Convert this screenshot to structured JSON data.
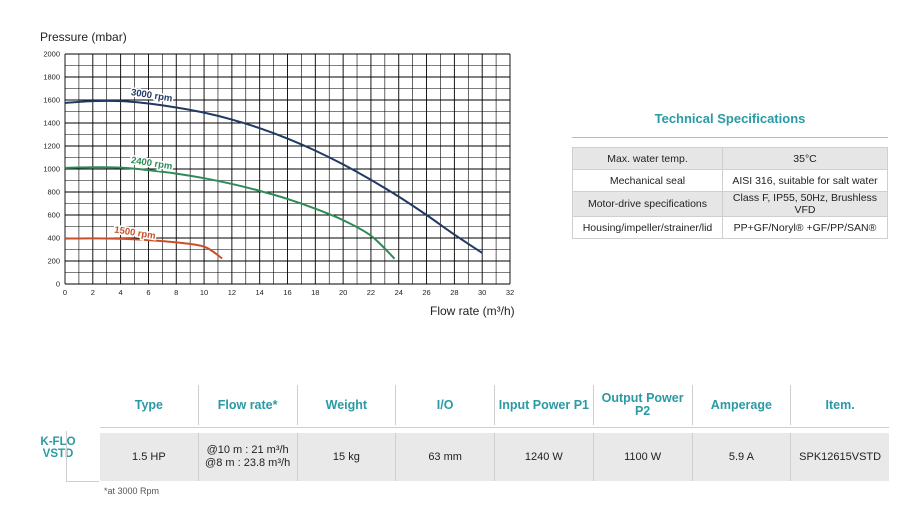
{
  "chart_data": {
    "type": "line",
    "ylabel": "Pressure (mbar)",
    "xlabel": "Flow rate (m³/h)",
    "xlim": [
      0,
      32
    ],
    "ylim": [
      0,
      2000
    ],
    "xticks": [
      0,
      2,
      4,
      6,
      8,
      10,
      12,
      14,
      16,
      18,
      20,
      22,
      24,
      26,
      28,
      30,
      32
    ],
    "yticks": [
      0,
      200,
      400,
      600,
      800,
      1000,
      1200,
      1400,
      1600,
      1800,
      2000
    ],
    "grid": true,
    "series": [
      {
        "name": "3000 rpm",
        "color": "#1f3a63",
        "points": [
          [
            0,
            1575
          ],
          [
            2,
            1590
          ],
          [
            4,
            1590
          ],
          [
            6,
            1570
          ],
          [
            8,
            1535
          ],
          [
            10,
            1490
          ],
          [
            12,
            1430
          ],
          [
            14,
            1355
          ],
          [
            16,
            1265
          ],
          [
            18,
            1160
          ],
          [
            20,
            1040
          ],
          [
            22,
            905
          ],
          [
            24,
            760
          ],
          [
            26,
            600
          ],
          [
            28,
            430
          ],
          [
            30,
            270
          ]
        ]
      },
      {
        "name": "2400 rpm",
        "color": "#2e8b57",
        "points": [
          [
            0,
            1010
          ],
          [
            2,
            1015
          ],
          [
            4,
            1012
          ],
          [
            6,
            990
          ],
          [
            8,
            960
          ],
          [
            10,
            920
          ],
          [
            12,
            870
          ],
          [
            14,
            810
          ],
          [
            16,
            740
          ],
          [
            18,
            655
          ],
          [
            20,
            555
          ],
          [
            22,
            420
          ],
          [
            23.7,
            220
          ]
        ]
      },
      {
        "name": "1500 rpm",
        "color": "#c8502a",
        "points": [
          [
            0,
            395
          ],
          [
            2,
            397
          ],
          [
            4,
            393
          ],
          [
            6,
            382
          ],
          [
            8,
            362
          ],
          [
            10,
            325
          ],
          [
            11.3,
            222
          ]
        ]
      }
    ]
  },
  "specs": {
    "title": "Technical Specifications",
    "rows": [
      {
        "key": "Max. water temp.",
        "value": "35°C"
      },
      {
        "key": "Mechanical seal",
        "value": "AISI 316, suitable for salt water"
      },
      {
        "key": "Motor-drive specifications",
        "value": "Class F, IP55, 50Hz, Brushless VFD"
      },
      {
        "key": "Housing/impeller/strainer/lid",
        "value": "PP+GF/Noryl® +GF/PP/SAN®"
      }
    ]
  },
  "product": {
    "model": "K-FLO VSTD",
    "headers": [
      "Type",
      "Flow rate*",
      "Weight",
      "I/O",
      "Input Power P1",
      "Output Power P2",
      "Amperage",
      "Item."
    ],
    "row": {
      "type": "1.5 HP",
      "flow_line1": "@10 m : 21 m³/h",
      "flow_line2": "@8 m : 23.8 m³/h",
      "weight": "15 kg",
      "io": "63 mm",
      "p1": "1240 W",
      "p2": "1100 W",
      "amperage": "5.9 A",
      "item": "SPK12615VSTD"
    },
    "note": "*at 3000 Rpm"
  }
}
